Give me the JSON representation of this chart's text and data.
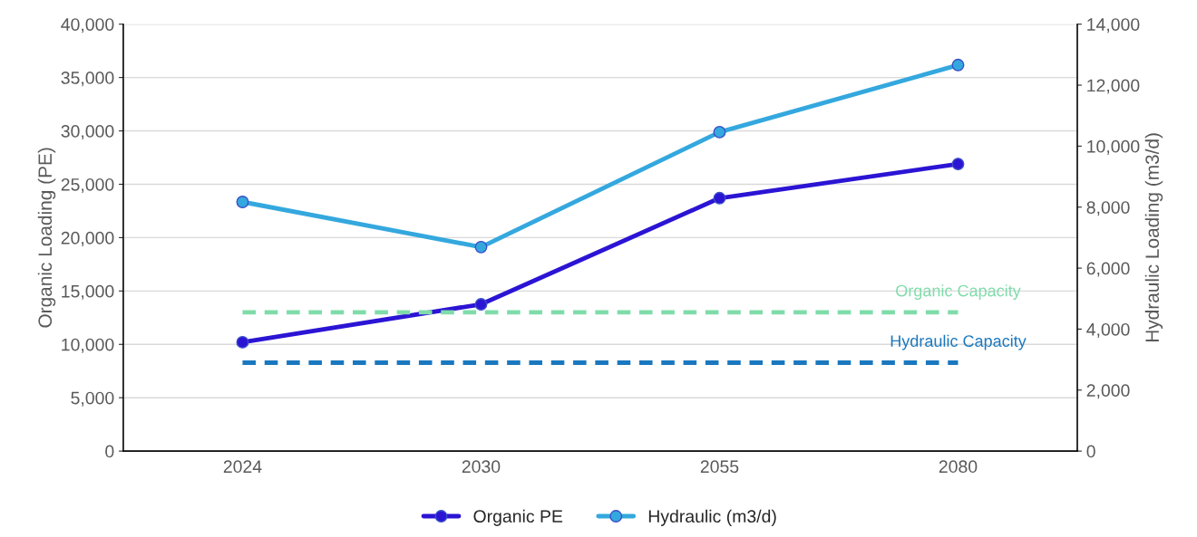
{
  "chart_data": {
    "type": "line",
    "categories": [
      "2024",
      "2030",
      "2055",
      "2080"
    ],
    "ylabel": "Organic Loading (PE)",
    "y2label": "Hydraulic Loading (m3/d)",
    "ylim": [
      0,
      40000
    ],
    "yticks": [
      {
        "value": 0,
        "label": "0"
      },
      {
        "value": 5000,
        "label": "5,000"
      },
      {
        "value": 10000,
        "label": "10,000"
      },
      {
        "value": 15000,
        "label": "15,000"
      },
      {
        "value": 20000,
        "label": "20,000"
      },
      {
        "value": 25000,
        "label": "25,000"
      },
      {
        "value": 30000,
        "label": "30,000"
      },
      {
        "value": 35000,
        "label": "35,000"
      },
      {
        "value": 40000,
        "label": "40,000"
      }
    ],
    "y2lim": [
      0,
      14000
    ],
    "y2ticks": [
      {
        "value": 0,
        "label": "0"
      },
      {
        "value": 2000,
        "label": "2,000"
      },
      {
        "value": 4000,
        "label": "4,000"
      },
      {
        "value": 6000,
        "label": "6,000"
      },
      {
        "value": 8000,
        "label": "8,000"
      },
      {
        "value": 10000,
        "label": "10,000"
      },
      {
        "value": 12000,
        "label": "12,000"
      },
      {
        "value": 14000,
        "label": "14,000"
      }
    ],
    "grid": "y",
    "legend": "bottom",
    "series": [
      {
        "name": "Organic PE",
        "color": "#2b14d4",
        "values": [
          10200,
          13750,
          23700,
          26900
        ],
        "marker": "circle",
        "line_style": "solid"
      },
      {
        "name": "Hydraulic (m3/d)",
        "color": "#34a8de",
        "values": [
          8170,
          6690,
          10460,
          12660
        ],
        "marker": "circle",
        "line_style": "solid",
        "axis": "y2"
      },
      {
        "name": "Organic Capacity",
        "color": "#7fdcaa",
        "values": [
          13000,
          13000,
          13000,
          13000
        ],
        "marker": "none",
        "line_style": "dashed"
      },
      {
        "name": "Hydraulic Capacity",
        "color": "#1a78bf",
        "values": [
          2900,
          2900,
          2900,
          2900
        ],
        "marker": "none",
        "line_style": "dashed",
        "axis": "y2"
      }
    ]
  }
}
